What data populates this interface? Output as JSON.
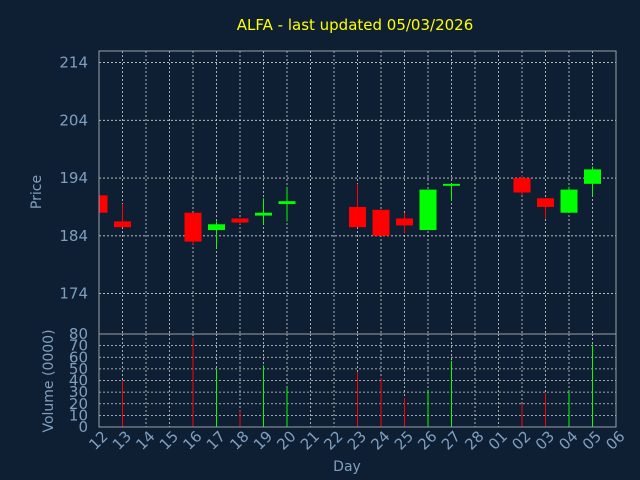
{
  "chart_data": {
    "type": "candlestick",
    "title": "ALFA - last updated 05/03/2026",
    "xlabel": "Day",
    "colors": {
      "up": "#00ff00",
      "down": "#ff0000",
      "background": "#0f1f33",
      "text": "#7f9fbf",
      "title": "#ffff00"
    },
    "days": [
      "12",
      "13",
      "14",
      "15",
      "16",
      "17",
      "18",
      "19",
      "20",
      "21",
      "22",
      "23",
      "24",
      "25",
      "26",
      "27",
      "28",
      "01",
      "02",
      "03",
      "04",
      "05",
      "06"
    ],
    "price_panel": {
      "ylabel": "Price",
      "yticks": [
        174,
        184,
        194,
        204,
        214
      ],
      "ylim": [
        167,
        216
      ],
      "candles": [
        {
          "day": "12",
          "open": 191.0,
          "high": 191.0,
          "low": 188.0,
          "close": 188.0
        },
        {
          "day": "13",
          "open": 186.5,
          "high": 189.5,
          "low": 185.5,
          "close": 185.5
        },
        {
          "day": "16",
          "open": 188.0,
          "high": 188.0,
          "low": 182.5,
          "close": 183.0
        },
        {
          "day": "17",
          "open": 185.0,
          "high": 186.5,
          "low": 182.0,
          "close": 186.0
        },
        {
          "day": "18",
          "open": 187.0,
          "high": 187.0,
          "low": 186.0,
          "close": 186.3
        },
        {
          "day": "19",
          "open": 187.5,
          "high": 190.5,
          "low": 186.0,
          "close": 188.0
        },
        {
          "day": "20",
          "open": 189.5,
          "high": 192.5,
          "low": 186.5,
          "close": 190.0
        },
        {
          "day": "23",
          "open": 189.0,
          "high": 193.0,
          "low": 185.5,
          "close": 185.5
        },
        {
          "day": "24",
          "open": 188.5,
          "high": 188.5,
          "low": 184.0,
          "close": 184.0
        },
        {
          "day": "25",
          "open": 187.0,
          "high": 188.0,
          "low": 184.5,
          "close": 185.8
        },
        {
          "day": "26",
          "open": 185.0,
          "high": 192.0,
          "low": 185.0,
          "close": 192.0
        },
        {
          "day": "27",
          "open": 192.8,
          "high": 193.0,
          "low": 190.0,
          "close": 193.0
        },
        {
          "day": "02",
          "open": 194.0,
          "high": 194.5,
          "low": 191.0,
          "close": 191.5
        },
        {
          "day": "03",
          "open": 190.5,
          "high": 190.5,
          "low": 187.0,
          "close": 189.0
        },
        {
          "day": "04",
          "open": 188.0,
          "high": 192.5,
          "low": 188.0,
          "close": 192.0
        },
        {
          "day": "05",
          "open": 193.0,
          "high": 196.0,
          "low": 191.0,
          "close": 195.5
        }
      ]
    },
    "volume_panel": {
      "ylabel": "Volume (0000)",
      "yticks": [
        0,
        10,
        20,
        30,
        40,
        50,
        60,
        70,
        80
      ],
      "ylim": [
        0,
        80
      ],
      "bars": [
        {
          "day": "13",
          "value": 40,
          "color": "#ff0000"
        },
        {
          "day": "16",
          "value": 77,
          "color": "#ff0000"
        },
        {
          "day": "17",
          "value": 50,
          "color": "#00ff00"
        },
        {
          "day": "18",
          "value": 14,
          "color": "#ff0000"
        },
        {
          "day": "19",
          "value": 53,
          "color": "#00ff00"
        },
        {
          "day": "20",
          "value": 34,
          "color": "#00ff00"
        },
        {
          "day": "23",
          "value": 47,
          "color": "#ff0000"
        },
        {
          "day": "24",
          "value": 42,
          "color": "#ff0000"
        },
        {
          "day": "25",
          "value": 25,
          "color": "#ff0000"
        },
        {
          "day": "26",
          "value": 32,
          "color": "#00ff00"
        },
        {
          "day": "27",
          "value": 57,
          "color": "#00ff00"
        },
        {
          "day": "02",
          "value": 20,
          "color": "#ff0000"
        },
        {
          "day": "03",
          "value": 29,
          "color": "#ff0000"
        },
        {
          "day": "04",
          "value": 31,
          "color": "#00ff00"
        },
        {
          "day": "05",
          "value": 71,
          "color": "#00ff00"
        }
      ]
    }
  }
}
